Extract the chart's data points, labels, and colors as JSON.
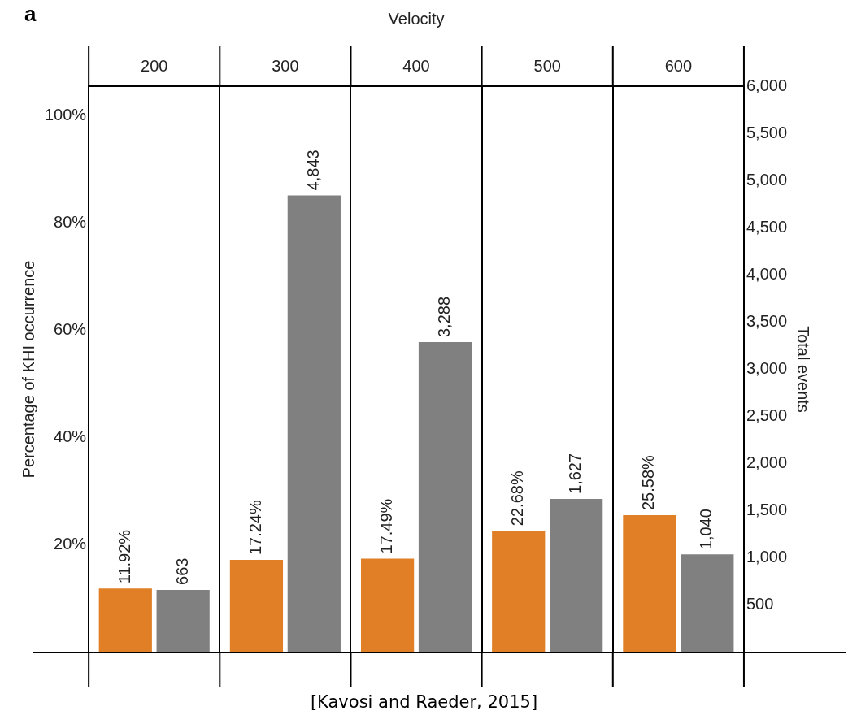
{
  "chart_data": {
    "type": "bar",
    "title": "a",
    "xlabel": "Velocity",
    "ylabel": "Percentage of KHI occurrence",
    "y2label": "Total events",
    "categories": [
      "200",
      "300",
      "400",
      "500",
      "600"
    ],
    "series": [
      {
        "color": "#e07f26",
        "values": [
          11.92,
          17.24,
          17.49,
          22.68,
          25.58
        ],
        "value_labels": [
          "11.92%",
          "17.24%",
          "17.49%",
          "22.68%",
          "25.58%"
        ]
      },
      {
        "color": "#808080",
        "axis": "y2",
        "values": [
          663,
          4843,
          3288,
          1627,
          1040
        ],
        "value_labels": [
          "663",
          "4,843",
          "3,288",
          "1,627",
          "1,040"
        ]
      }
    ],
    "ylim": [
      0,
      105.5
    ],
    "yticks": [
      {
        "value": 20,
        "label": "20%"
      },
      {
        "value": 40,
        "label": "40%"
      },
      {
        "value": 60,
        "label": "60%"
      },
      {
        "value": 80,
        "label": "80%"
      },
      {
        "value": 100,
        "label": "100%"
      }
    ],
    "y2lim": [
      0,
      6000
    ],
    "y2ticks": [
      500,
      {
        "value": 1000,
        "label": "1,000"
      },
      {
        "value": 1500,
        "label": "1,500"
      },
      {
        "value": 2000,
        "label": "2,000"
      },
      {
        "value": 2500,
        "label": "2,500"
      },
      {
        "value": 3000,
        "label": "3,000"
      },
      {
        "value": 3500,
        "label": "3,500"
      },
      {
        "value": 4000,
        "label": "4,000"
      },
      {
        "value": 4500,
        "label": "4,500"
      },
      {
        "value": 5000,
        "label": "5,000"
      },
      {
        "value": 5500,
        "label": "5,500"
      },
      {
        "value": 6000,
        "label": "6,000"
      }
    ],
    "grid": "x",
    "legend": false,
    "annotations": [
      "[Kavosi and Raeder, 2015]"
    ]
  }
}
